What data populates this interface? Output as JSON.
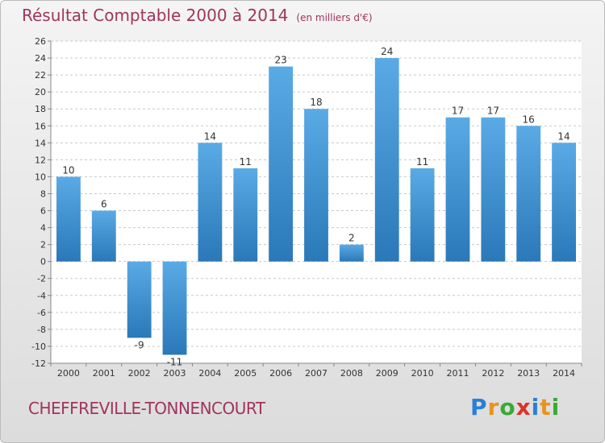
{
  "header": {
    "title": "Résultat Comptable 2000 à 2014",
    "unit_note": "(en milliers d'€)"
  },
  "footer": {
    "commune": "CHEFFREVILLE-TONNENCOURT"
  },
  "logo": {
    "text": "Proxiti",
    "letters": [
      {
        "char": "P",
        "color": "#2a7fd4"
      },
      {
        "char": "r",
        "color": "#e8931e"
      },
      {
        "char": "o",
        "color": "#3aaa35"
      },
      {
        "char": "x",
        "color": "#d8342c"
      },
      {
        "char": "i",
        "color": "#2a7fd4"
      },
      {
        "char": "t",
        "color": "#e8931e"
      },
      {
        "char": "i",
        "color": "#3aaa35"
      }
    ]
  },
  "colors": {
    "bar_light": "#5aaae6",
    "bar_dark": "#2a78b8",
    "grid": "#c8c8c8",
    "axis": "#888888",
    "text": "#333333",
    "title": "#a0345c"
  },
  "chart_data": {
    "type": "bar",
    "title": "Résultat Comptable 2000 à 2014",
    "subtitle": "(en milliers d'€)",
    "xlabel": "",
    "ylabel": "",
    "categories": [
      "2000",
      "2001",
      "2002",
      "2003",
      "2004",
      "2005",
      "2006",
      "2007",
      "2008",
      "2009",
      "2010",
      "2011",
      "2012",
      "2013",
      "2014"
    ],
    "values": [
      10,
      6,
      -9,
      -11,
      14,
      11,
      23,
      18,
      2,
      24,
      11,
      17,
      17,
      16,
      14
    ],
    "data_labels": [
      "10",
      "6",
      "-9",
      "-11",
      "14",
      "11",
      "23",
      "18",
      "2",
      "24",
      "11",
      "17",
      "17",
      "16",
      "14"
    ],
    "ylim": [
      -12,
      26
    ],
    "yticks": [
      -12,
      -10,
      -8,
      -6,
      -4,
      -2,
      0,
      2,
      4,
      6,
      8,
      10,
      12,
      14,
      16,
      18,
      20,
      22,
      24,
      26
    ],
    "grid": true,
    "legend": "none"
  }
}
